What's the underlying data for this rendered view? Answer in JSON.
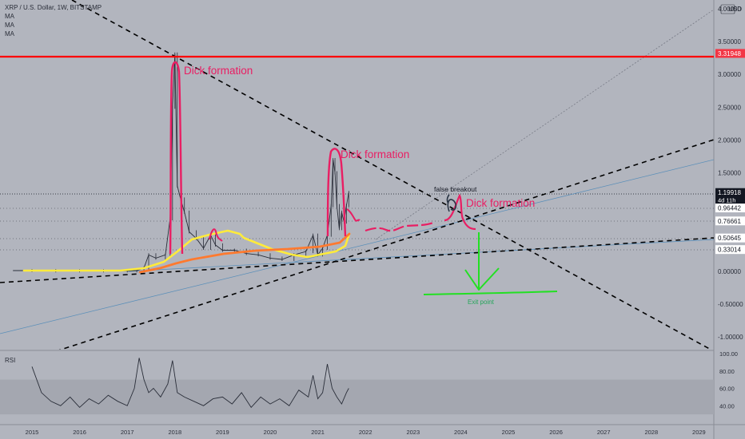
{
  "header": {
    "symbol": "XRP / U.S. Dollar, 1W, BITSTAMP",
    "indicators": [
      "MA",
      "MA",
      "MA"
    ]
  },
  "price_axis": {
    "unit": "USD",
    "ticks": [
      "4.00000",
      "3.50000",
      "3.00000",
      "2.50000",
      "2.00000",
      "1.50000",
      "1.00000",
      "0.50000",
      "0.00000",
      "-0.50000",
      "-1.00000"
    ],
    "labels": [
      {
        "text": "3.31948",
        "bg": "#f23645",
        "fg": "#ffffff"
      },
      {
        "text": "1.19918",
        "sub": "4d 11h",
        "bg": "#131722",
        "fg": "#ffffff"
      },
      {
        "text": "0.96442",
        "bg": "#ffffff",
        "fg": "#131722"
      },
      {
        "text": "0.76661",
        "bg": "#ffffff",
        "fg": "#131722"
      },
      {
        "text": "0.50645",
        "bg": "#ffffff",
        "fg": "#131722"
      },
      {
        "text": "0.33014",
        "bg": "#ffffff",
        "fg": "#131722"
      }
    ]
  },
  "rsi": {
    "label": "RSI",
    "ticks": [
      "100.00",
      "80.00",
      "60.00",
      "40.00"
    ]
  },
  "time_axis": {
    "ticks": [
      "2015",
      "2016",
      "2017",
      "2018",
      "2019",
      "2020",
      "2021",
      "2022",
      "2023",
      "2024",
      "2025",
      "2026",
      "2027",
      "2028",
      "2029"
    ]
  },
  "annotations": [
    {
      "text": "Dick formation",
      "color": "#e91e63"
    },
    {
      "text": "Dick formation",
      "color": "#e91e63"
    },
    {
      "text": "Dick formation",
      "color": "#e91e63"
    },
    {
      "text": "false breakout",
      "color": "#131722"
    },
    {
      "text": "Exit point",
      "color": "#26a65b"
    }
  ],
  "colors": {
    "background": "#b2b5be",
    "resistance": "#ff0000",
    "drawing_pink": "#e91e63",
    "drawing_yellow": "#ffeb3b",
    "drawing_orange": "#ff7a2f",
    "drawing_green": "#22e022",
    "candles": "#2a2e39"
  },
  "chart_data": [
    {
      "type": "line",
      "title": "XRP / U.S. Dollar, 1W, BITSTAMP",
      "xlabel": "",
      "ylabel": "USD",
      "ylim": [
        -1.1,
        4.05
      ],
      "xlim": [
        2014.6,
        2029.2
      ],
      "log_scale": false,
      "grid": false,
      "series": [
        {
          "name": "",
          "x": [
            2014.6,
            2015.0,
            2015.5,
            2016.0,
            2016.5,
            2017.0,
            2017.2,
            2017.35,
            2017.45,
            2017.6,
            2017.8,
            2017.9,
            2017.95,
            2018.0,
            2018.05,
            2018.12,
            2018.2,
            2018.3,
            2018.45,
            2018.6,
            2018.75,
            2018.85,
            2019.0,
            2019.25,
            2019.5,
            2019.75,
            2020.0,
            2020.25,
            2020.5,
            2020.75,
            2020.9,
            2021.0,
            2021.1,
            2021.2,
            2021.28,
            2021.32,
            2021.36,
            2021.4,
            2021.45,
            2021.5,
            2021.55,
            2021.6,
            2021.65
          ],
          "values": [
            0.01,
            0.01,
            0.006,
            0.006,
            0.007,
            0.006,
            0.01,
            0.05,
            0.25,
            0.2,
            0.25,
            0.8,
            2.5,
            3.31,
            1.3,
            1.1,
            0.9,
            0.6,
            0.5,
            0.35,
            0.55,
            0.4,
            0.32,
            0.32,
            0.27,
            0.25,
            0.2,
            0.18,
            0.25,
            0.3,
            0.55,
            0.25,
            0.35,
            0.55,
            1.0,
            1.7,
            1.5,
            1.0,
            0.65,
            0.9,
            0.75,
            1.0,
            1.2
          ]
        }
      ],
      "hlines": [
        3.31948
      ],
      "price_labels": [
        3.31948,
        1.19918,
        0.96442,
        0.76661,
        0.50645,
        0.33014
      ]
    },
    {
      "type": "line",
      "title": "RSI",
      "ylim": [
        20,
        100
      ],
      "series": [
        {
          "name": "",
          "x": [
            2015.0,
            2015.2,
            2015.4,
            2015.6,
            2015.8,
            2016.0,
            2016.2,
            2016.4,
            2016.6,
            2016.8,
            2017.0,
            2017.15,
            2017.25,
            2017.35,
            2017.45,
            2017.55,
            2017.7,
            2017.85,
            2017.95,
            2018.05,
            2018.2,
            2018.4,
            2018.6,
            2018.8,
            2019.0,
            2019.2,
            2019.4,
            2019.6,
            2019.8,
            2020.0,
            2020.2,
            2020.4,
            2020.6,
            2020.8,
            2020.9,
            2021.0,
            2021.1,
            2021.2,
            2021.3,
            2021.4,
            2021.5,
            2021.6,
            2021.65
          ],
          "values": [
            85,
            55,
            45,
            40,
            50,
            38,
            48,
            42,
            52,
            45,
            40,
            60,
            95,
            70,
            55,
            60,
            50,
            65,
            92,
            55,
            50,
            45,
            40,
            48,
            50,
            42,
            55,
            38,
            50,
            42,
            48,
            40,
            58,
            50,
            75,
            48,
            55,
            88,
            60,
            50,
            42,
            55,
            60
          ]
        }
      ],
      "reference_band": [
        30,
        70
      ]
    }
  ]
}
